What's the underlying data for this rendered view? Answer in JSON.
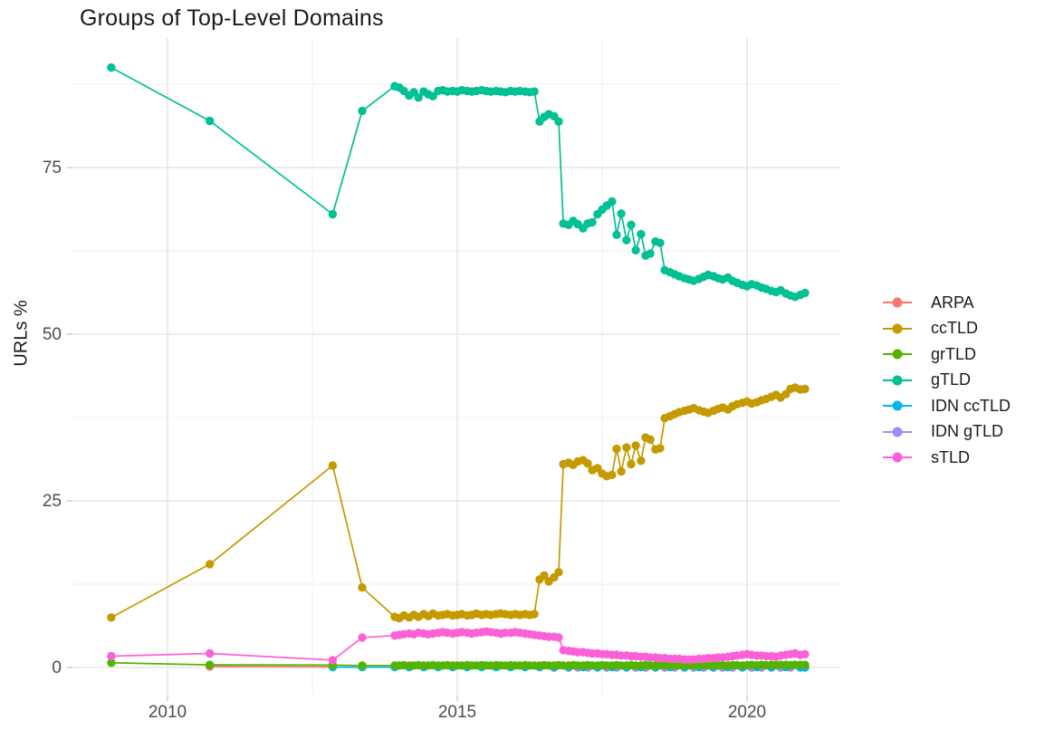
{
  "title": "Groups of Top-Level Domains",
  "axes": {
    "ylabel": "URLs %",
    "xlabel": "",
    "y_tick_labels": [
      "0",
      "25",
      "50",
      "75"
    ],
    "x_tick_labels": [
      "2010",
      "2015",
      "2020"
    ]
  },
  "colors": {
    "background": "#ffffff",
    "grid_major": "#e2e2e2",
    "grid_minor": "#efefef",
    "tick_mark": "#cfcfcf",
    "tick_text": "#4d4d4d",
    "title_text": "#1b1b1b"
  },
  "legend": {
    "position": "right",
    "items": [
      {
        "label": "ARPA",
        "color": "#F8766D"
      },
      {
        "label": "ccTLD",
        "color": "#C49A00"
      },
      {
        "label": "grTLD",
        "color": "#53B400"
      },
      {
        "label": "gTLD",
        "color": "#00C094"
      },
      {
        "label": "IDN ccTLD",
        "color": "#00B6EB"
      },
      {
        "label": "IDN gTLD",
        "color": "#A58AFF"
      },
      {
        "label": "sTLD",
        "color": "#FB61D7"
      }
    ]
  },
  "chart_data": {
    "type": "line",
    "title": "Groups of Top-Level Domains",
    "xlabel": "",
    "ylabel": "URLs %",
    "x_major": [
      2010,
      2015,
      2020
    ],
    "x_minor": [
      2012.5,
      2017.5
    ],
    "y_major": [
      0,
      25,
      50,
      75
    ],
    "y_minor": [
      12.5,
      37.5,
      62.5,
      87.5
    ],
    "xlim": [
      2008.4,
      2021.6
    ],
    "ylim": [
      -4,
      94
    ],
    "grid": true,
    "legend_position": "right",
    "shared_x": [
      2009.03,
      2010.73,
      2012.85,
      2013.36,
      2013.92,
      2014.0,
      2014.08,
      2014.17,
      2014.25,
      2014.33,
      2014.42,
      2014.5,
      2014.58,
      2014.67,
      2014.75,
      2014.83,
      2014.92,
      2015.0,
      2015.08,
      2015.17,
      2015.25,
      2015.33,
      2015.42,
      2015.5,
      2015.58,
      2015.67,
      2015.75,
      2015.83,
      2015.92,
      2016.0,
      2016.08,
      2016.17,
      2016.25,
      2016.33,
      2016.42,
      2016.5,
      2016.58,
      2016.67,
      2016.75,
      2016.83,
      2016.92,
      2017.0,
      2017.08,
      2017.17,
      2017.25,
      2017.33,
      2017.42,
      2017.5,
      2017.58,
      2017.67,
      2017.75,
      2017.83,
      2017.92,
      2018.0,
      2018.08,
      2018.17,
      2018.25,
      2018.33,
      2018.42,
      2018.5,
      2018.58,
      2018.67,
      2018.75,
      2018.83,
      2018.92,
      2019.0,
      2019.08,
      2019.17,
      2019.25,
      2019.33,
      2019.42,
      2019.5,
      2019.58,
      2019.67,
      2019.75,
      2019.83,
      2019.92,
      2020.0,
      2020.08,
      2020.17,
      2020.25,
      2020.33,
      2020.42,
      2020.5,
      2020.58,
      2020.67,
      2020.75,
      2020.83,
      2020.92,
      2021.0
    ],
    "series": [
      {
        "name": "ARPA",
        "color": "#F8766D",
        "x": [
          2010.73,
          2012.85
        ],
        "y": [
          0.15,
          0.1
        ]
      },
      {
        "name": "ccTLD",
        "color": "#C49A00",
        "use_shared_x": true,
        "y": [
          7.5,
          15.5,
          30.3,
          12.0,
          7.6,
          7.4,
          7.8,
          7.5,
          7.9,
          7.6,
          8.0,
          7.7,
          8.1,
          7.8,
          7.9,
          8.0,
          7.8,
          7.9,
          8.0,
          7.8,
          7.9,
          8.1,
          7.9,
          8.0,
          7.9,
          8.0,
          8.1,
          8.0,
          7.9,
          8.0,
          7.9,
          8.0,
          7.9,
          8.0,
          13.2,
          13.8,
          12.9,
          13.5,
          14.3,
          30.5,
          30.7,
          30.4,
          30.9,
          31.1,
          30.6,
          29.6,
          29.9,
          29.1,
          28.7,
          28.9,
          32.8,
          29.4,
          33.0,
          30.5,
          33.3,
          31.0,
          34.5,
          34.2,
          32.7,
          32.9,
          37.4,
          37.7,
          38.0,
          38.3,
          38.5,
          38.7,
          38.9,
          38.6,
          38.4,
          38.2,
          38.5,
          38.8,
          39.0,
          38.7,
          39.2,
          39.5,
          39.7,
          39.9,
          39.6,
          39.8,
          40.1,
          40.3,
          40.6,
          40.9,
          40.5,
          41.0,
          41.8,
          42.0,
          41.7,
          41.8
        ]
      },
      {
        "name": "grTLD",
        "color": "#53B400",
        "use_shared_x": true,
        "y": [
          0.7,
          0.4,
          0.35,
          0.3,
          0.3,
          0.3,
          0.35,
          0.3,
          0.3,
          0.35,
          0.3,
          0.3,
          0.35,
          0.3,
          0.3,
          0.35,
          0.3,
          0.3,
          0.3,
          0.35,
          0.3,
          0.3,
          0.35,
          0.3,
          0.3,
          0.35,
          0.3,
          0.3,
          0.35,
          0.3,
          0.3,
          0.35,
          0.3,
          0.3,
          0.3,
          0.35,
          0.3,
          0.3,
          0.35,
          0.3,
          0.3,
          0.35,
          0.3,
          0.3,
          0.35,
          0.3,
          0.3,
          0.35,
          0.3,
          0.3,
          0.35,
          0.3,
          0.3,
          0.35,
          0.3,
          0.3,
          0.35,
          0.3,
          0.3,
          0.35,
          0.3,
          0.35,
          0.3,
          0.35,
          0.3,
          0.35,
          0.3,
          0.35,
          0.35,
          0.3,
          0.35,
          0.3,
          0.35,
          0.3,
          0.35,
          0.35,
          0.3,
          0.35,
          0.4,
          0.35,
          0.4,
          0.35,
          0.4,
          0.35,
          0.4,
          0.4,
          0.35,
          0.4,
          0.4,
          0.4
        ]
      },
      {
        "name": "gTLD",
        "color": "#00C094",
        "use_shared_x": true,
        "y": [
          90.0,
          82.0,
          68.0,
          83.5,
          87.2,
          87.0,
          86.5,
          85.8,
          86.3,
          85.5,
          86.4,
          86.0,
          85.7,
          86.5,
          86.6,
          86.4,
          86.5,
          86.4,
          86.6,
          86.5,
          86.4,
          86.5,
          86.6,
          86.5,
          86.4,
          86.5,
          86.4,
          86.3,
          86.5,
          86.4,
          86.5,
          86.4,
          86.3,
          86.4,
          81.9,
          82.6,
          83.0,
          82.7,
          81.9,
          66.6,
          66.4,
          67.0,
          66.5,
          65.9,
          66.6,
          66.8,
          68.0,
          68.7,
          69.3,
          69.9,
          64.9,
          68.1,
          64.1,
          66.4,
          62.6,
          65.0,
          61.8,
          62.1,
          63.9,
          63.7,
          59.6,
          59.3,
          59.0,
          58.7,
          58.4,
          58.2,
          58.0,
          58.3,
          58.6,
          58.9,
          58.7,
          58.4,
          58.2,
          58.5,
          58.0,
          57.7,
          57.4,
          57.2,
          57.5,
          57.3,
          57.0,
          56.8,
          56.5,
          56.3,
          56.6,
          56.1,
          55.8,
          55.6,
          55.9,
          56.2
        ]
      },
      {
        "name": "IDN ccTLD",
        "color": "#00B6EB",
        "x": [
          2012.85,
          2013.36,
          2013.92,
          2014.17,
          2014.42,
          2014.67,
          2014.92,
          2015.17,
          2015.42,
          2015.67,
          2015.92,
          2016.17,
          2016.42,
          2016.67,
          2016.92,
          2017.17,
          2017.42,
          2017.67,
          2017.92,
          2018.17,
          2018.42,
          2018.67,
          2018.92,
          2019.17,
          2019.42,
          2019.67,
          2019.92,
          2020.17,
          2020.42,
          2020.67,
          2020.92,
          2021.0
        ],
        "y": [
          0.05,
          0.05,
          0.05,
          0.05,
          0.05,
          0.05,
          0.05,
          0.05,
          0.05,
          0.05,
          0.05,
          0.05,
          0.05,
          0.05,
          0.05,
          0.05,
          0.05,
          0.05,
          0.05,
          0.05,
          0.05,
          0.05,
          0.05,
          0.05,
          0.05,
          0.05,
          0.05,
          0.05,
          0.05,
          0.05,
          0.05,
          0.05
        ]
      },
      {
        "name": "IDN gTLD",
        "color": "#A58AFF",
        "x": [
          2016.67,
          2016.92,
          2017.08,
          2017.25,
          2017.42,
          2017.58,
          2017.75,
          2017.92,
          2018.08,
          2018.25,
          2018.42,
          2018.58,
          2018.75,
          2018.92,
          2019.08,
          2019.25,
          2019.42,
          2019.58,
          2019.75,
          2019.92,
          2020.08,
          2020.25,
          2020.42,
          2020.58,
          2020.75,
          2020.92,
          2021.0
        ],
        "y": [
          0.0,
          0.0,
          0.0,
          0.0,
          0.0,
          0.0,
          0.0,
          0.0,
          0.0,
          0.0,
          0.0,
          0.0,
          0.0,
          0.0,
          0.0,
          0.0,
          0.0,
          0.0,
          0.0,
          0.0,
          0.0,
          0.0,
          0.0,
          0.0,
          0.0,
          0.0,
          0.0
        ]
      },
      {
        "name": "sTLD",
        "color": "#FB61D7",
        "use_shared_x": true,
        "y": [
          1.7,
          2.1,
          1.1,
          4.5,
          4.8,
          4.9,
          5.0,
          5.1,
          5.0,
          5.2,
          5.1,
          5.0,
          5.1,
          5.2,
          5.3,
          5.2,
          5.1,
          5.2,
          5.3,
          5.2,
          5.1,
          5.2,
          5.3,
          5.4,
          5.3,
          5.2,
          5.1,
          5.2,
          5.2,
          5.3,
          5.2,
          5.1,
          5.0,
          4.9,
          4.8,
          4.7,
          4.6,
          4.6,
          4.5,
          2.6,
          2.5,
          2.4,
          2.3,
          2.3,
          2.2,
          2.1,
          2.1,
          2.0,
          2.0,
          1.9,
          1.9,
          1.8,
          1.8,
          1.7,
          1.7,
          1.6,
          1.6,
          1.5,
          1.5,
          1.4,
          1.4,
          1.3,
          1.3,
          1.3,
          1.2,
          1.2,
          1.2,
          1.3,
          1.3,
          1.4,
          1.4,
          1.5,
          1.5,
          1.6,
          1.7,
          1.8,
          1.9,
          2.0,
          1.9,
          1.8,
          1.8,
          1.7,
          1.7,
          1.6,
          1.8,
          1.9,
          2.0,
          2.1,
          1.9,
          2.0
        ]
      }
    ]
  }
}
